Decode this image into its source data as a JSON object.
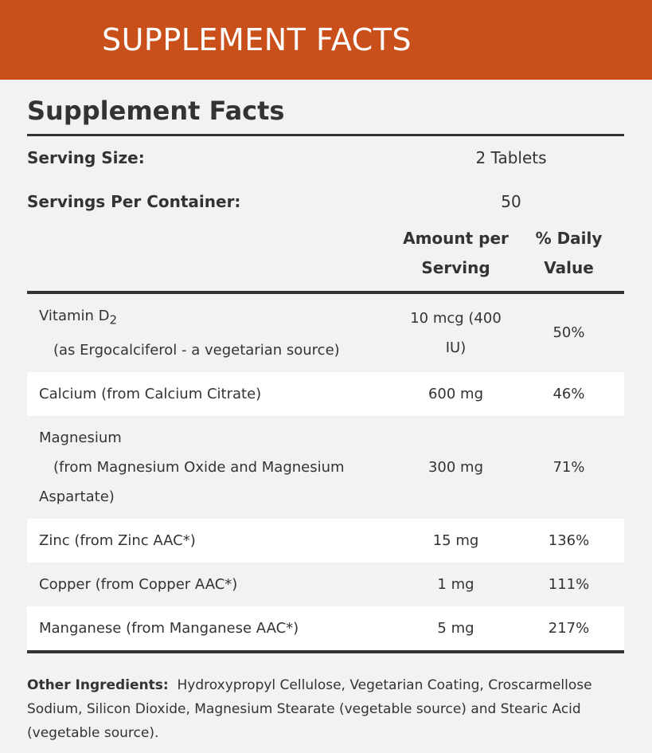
{
  "header": {
    "title": "SUPPLEMENT FACTS"
  },
  "facts": {
    "title": "Supplement Facts",
    "serving_size": {
      "label": "Serving Size:",
      "value": "2 Tablets"
    },
    "servings_per_container": {
      "label": "Servings Per Container:",
      "value": "50"
    },
    "columns": [
      "Amount per Serving",
      "% Daily Value"
    ],
    "rows": [
      {
        "name": "Vitamin D",
        "subscript": "2",
        "detail": "(as Ergocalciferol - a vegetarian source)",
        "amount": "10 mcg (400 IU)",
        "daily_value": "50%"
      },
      {
        "name": "Calcium (from Calcium Citrate)",
        "amount": "600 mg",
        "daily_value": "46%"
      },
      {
        "name": "Magnesium",
        "detail": "(from Magnesium Oxide and Magnesium Aspartate)",
        "amount": "300 mg",
        "daily_value": "71%"
      },
      {
        "name": "Zinc (from Zinc AAC*)",
        "amount": "15 mg",
        "daily_value": "136%"
      },
      {
        "name": "Copper (from Copper AAC*)",
        "amount": "1 mg",
        "daily_value": "111%"
      },
      {
        "name": "Manganese (from Manganese AAC*)",
        "amount": "5 mg",
        "daily_value": "217%"
      }
    ],
    "other_ingredients": {
      "label": "Other Ingredients:",
      "text": "Hydroxypropyl Cellulose, Vegetarian Coating, Croscarmellose Sodium, Silicon Dioxide, Magnesium Stearate (vegetable source) and Stearic Acid (vegetable source)."
    }
  }
}
